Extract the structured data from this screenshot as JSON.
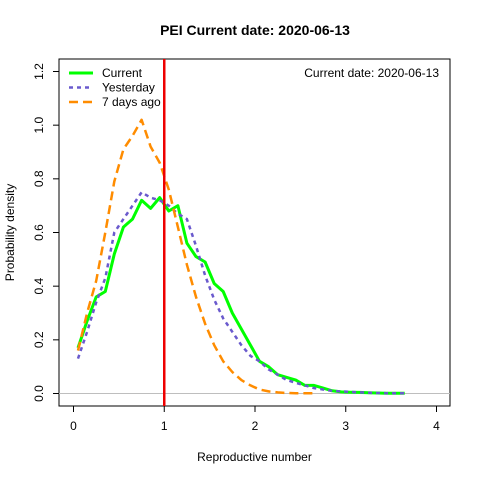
{
  "chart_data": {
    "type": "line",
    "title": "PEI   Current date:  2020-06-13",
    "annotation": "Current date:  2020-06-13",
    "xlabel": "Reproductive number",
    "ylabel": "Probability density",
    "xlim": [
      0,
      4
    ],
    "ylim": [
      0,
      1.2
    ],
    "x_ticks": [
      0,
      1,
      2,
      3,
      4
    ],
    "y_ticks": [
      0.0,
      0.2,
      0.4,
      0.6,
      0.8,
      1.0,
      1.2
    ],
    "x_tick_labels": [
      "0",
      "1",
      "2",
      "3",
      "4"
    ],
    "y_tick_labels": [
      "0.0",
      "0.2",
      "0.4",
      "0.6",
      "0.8",
      "1.0",
      "1.2"
    ],
    "legend_position": "top-left",
    "reference_line": {
      "x": 1,
      "color": "#ee0000"
    },
    "baseline": {
      "y": 0,
      "color": "#bebebe"
    },
    "series": [
      {
        "name": "Current",
        "color": "#00ff00",
        "dash": "solid",
        "x": [
          0.05,
          0.15,
          0.25,
          0.35,
          0.45,
          0.55,
          0.65,
          0.75,
          0.85,
          0.95,
          1.05,
          1.15,
          1.25,
          1.35,
          1.45,
          1.55,
          1.65,
          1.75,
          1.85,
          1.95,
          2.05,
          2.15,
          2.25,
          2.35,
          2.45,
          2.55,
          2.65,
          2.75,
          2.85,
          2.95,
          3.05,
          3.15,
          3.25,
          3.35,
          3.45,
          3.55,
          3.65
        ],
        "y": [
          0.17,
          0.27,
          0.36,
          0.38,
          0.52,
          0.62,
          0.65,
          0.72,
          0.69,
          0.73,
          0.68,
          0.7,
          0.56,
          0.51,
          0.49,
          0.41,
          0.38,
          0.3,
          0.24,
          0.18,
          0.12,
          0.1,
          0.07,
          0.06,
          0.05,
          0.03,
          0.03,
          0.02,
          0.01,
          0.006,
          0.005,
          0.004,
          0.003,
          0.002,
          0.001,
          0.001,
          0.001
        ]
      },
      {
        "name": "Yesterday",
        "color": "#6a5acd",
        "dash": "short",
        "x": [
          0.05,
          0.15,
          0.25,
          0.35,
          0.45,
          0.55,
          0.65,
          0.75,
          0.85,
          0.95,
          1.05,
          1.15,
          1.25,
          1.35,
          1.45,
          1.55,
          1.65,
          1.75,
          1.85,
          1.95,
          2.05,
          2.15,
          2.25,
          2.35,
          2.45,
          2.55,
          2.65,
          2.75,
          2.85,
          2.95,
          3.05,
          3.15,
          3.25,
          3.35,
          3.45,
          3.55,
          3.65
        ],
        "y": [
          0.13,
          0.23,
          0.34,
          0.43,
          0.6,
          0.65,
          0.7,
          0.75,
          0.73,
          0.72,
          0.7,
          0.67,
          0.65,
          0.55,
          0.44,
          0.35,
          0.28,
          0.23,
          0.18,
          0.14,
          0.12,
          0.09,
          0.07,
          0.05,
          0.04,
          0.03,
          0.02,
          0.015,
          0.01,
          0.008,
          0.006,
          0.004,
          0.003,
          0.002,
          0.001,
          0.001,
          0.001
        ]
      },
      {
        "name": "7 days ago",
        "color": "#ff8c00",
        "dash": "long",
        "x": [
          0.05,
          0.15,
          0.25,
          0.35,
          0.45,
          0.55,
          0.65,
          0.75,
          0.85,
          0.95,
          1.05,
          1.15,
          1.25,
          1.35,
          1.45,
          1.55,
          1.65,
          1.75,
          1.85,
          1.95,
          2.05,
          2.15,
          2.25,
          2.35,
          2.45,
          2.55,
          2.65
        ],
        "y": [
          0.16,
          0.3,
          0.42,
          0.6,
          0.79,
          0.91,
          0.96,
          1.02,
          0.92,
          0.86,
          0.76,
          0.62,
          0.48,
          0.36,
          0.26,
          0.18,
          0.12,
          0.08,
          0.05,
          0.03,
          0.015,
          0.008,
          0.004,
          0.002,
          0.001,
          0.001,
          0.001
        ]
      }
    ]
  }
}
